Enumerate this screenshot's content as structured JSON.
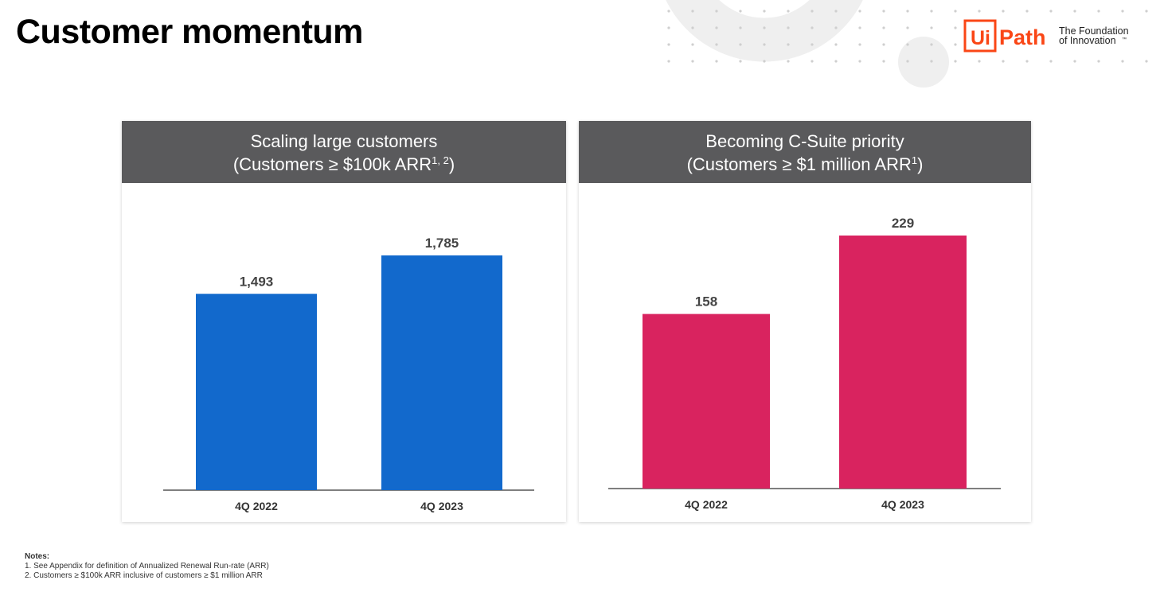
{
  "page": {
    "title": "Customer momentum"
  },
  "logo": {
    "brand_ui": "Ui",
    "brand_path": "Path",
    "tagline_1": "The Foundation",
    "tagline_2": "of Innovation",
    "tm": "™",
    "color": "#fa4616"
  },
  "panels": [
    {
      "heading_line1": "Scaling large customers",
      "heading_line2": "(Customers ≥ $100k ARR",
      "heading_sup": "1, 2",
      "heading_close": ")"
    },
    {
      "heading_line1": "Becoming C-Suite priority",
      "heading_line2": "(Customers ≥ $1 million ARR",
      "heading_sup": "1",
      "heading_close": ")"
    }
  ],
  "chart_data": [
    {
      "type": "bar",
      "categories": [
        "4Q 2022",
        "4Q 2023"
      ],
      "values": [
        1493,
        1785
      ],
      "labels": [
        "1,493",
        "1,785"
      ],
      "color": "#1269cc"
    },
    {
      "type": "bar",
      "categories": [
        "4Q 2022",
        "4Q 2023"
      ],
      "values": [
        158,
        229
      ],
      "labels": [
        "158",
        "229"
      ],
      "color": "#d9235f"
    }
  ],
  "notes": {
    "heading": "Notes:",
    "items": [
      "1. See Appendix for definition of Annualized Renewal Run-rate (ARR)",
      "2. Customers ≥ $100k ARR inclusive of customers ≥ $1 million ARR"
    ]
  }
}
